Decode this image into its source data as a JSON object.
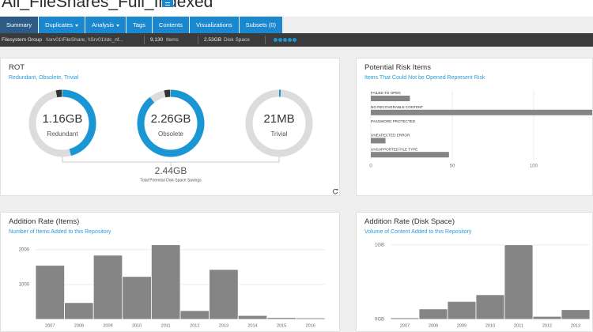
{
  "header": {
    "title": "All_FileShares_Full_Indexed"
  },
  "tabs": [
    "Summary",
    "Duplicates",
    "Analysis",
    "Tags",
    "Contents",
    "Visualizations",
    "Subsets (0)"
  ],
  "info_bar": {
    "group_label": "Filesystem Group",
    "group_path": "\\\\srv01\\FileShare, \\\\Srv01\\ldc_nf...",
    "items": "9,130",
    "items_label": "Items",
    "disk_space": {
      "value": 2.53,
      "label": "2.53GB"
    },
    "disk_space_label": "Disk Space"
  },
  "rot": {
    "title": "ROT",
    "subtitle": "Redundant, Obsolete, Trivial",
    "items": [
      {
        "value": 1.16,
        "label": "1.16GB",
        "name": "Redundant"
      },
      {
        "value": 2.26,
        "label": "2.26GB",
        "name": "Obsolete"
      },
      {
        "value": 0.021,
        "label": "21MB",
        "name": "Trivial"
      }
    ],
    "color": "#1a96d4",
    "total": "2.44GB",
    "total_label": "Total Potential Disk Space Savings"
  },
  "chart_data": [
    {
      "type": "bar",
      "orientation": "horizontal",
      "title": "Potential Risk Items",
      "subtitle": "Items That Could Not be Opened Represent Risk",
      "categories": [
        "FAILED TO OPEN",
        "NO RECOVERABLE CONTENT",
        "PASSWORD PROTECTED",
        "UNEXPECTED ERROR",
        "UNSUPPORTED FILE TYPE"
      ],
      "values": [
        24,
        150,
        0,
        9,
        48
      ],
      "color": "#858585",
      "xlim": [
        0,
        135
      ],
      "xticks": [
        0,
        50,
        100
      ],
      "grid": true
    },
    {
      "type": "bar",
      "title": "Addition Rate (Items)",
      "subtitle": "Number of Items Added to this Repository",
      "categories": [
        "2007",
        "2008",
        "2009",
        "2010",
        "2011",
        "2012",
        "2013",
        "2014",
        "2015",
        "2016"
      ],
      "values": [
        1550,
        480,
        1840,
        1230,
        2140,
        250,
        1430,
        110,
        50,
        40
      ],
      "color": "#858585",
      "ylim": [
        0,
        2200
      ],
      "yticks": [
        1000,
        2000
      ],
      "grid": true
    },
    {
      "type": "bar",
      "title": "Addition Rate (Disk Space)",
      "subtitle": "Volume of Content Added to this Repository",
      "categories": [
        "2007",
        "2008",
        "2009",
        "2010",
        "2011",
        "2012",
        "2013"
      ],
      "values": [
        0.02,
        0.14,
        0.24,
        0.33,
        1.0,
        0.04,
        0.13
      ],
      "color": "#858585",
      "ylim": [
        0,
        1.05
      ],
      "yticks": [
        {
          "value": 0,
          "label": "0GB"
        },
        {
          "value": 1,
          "label": "1GB"
        }
      ],
      "grid": true
    }
  ]
}
